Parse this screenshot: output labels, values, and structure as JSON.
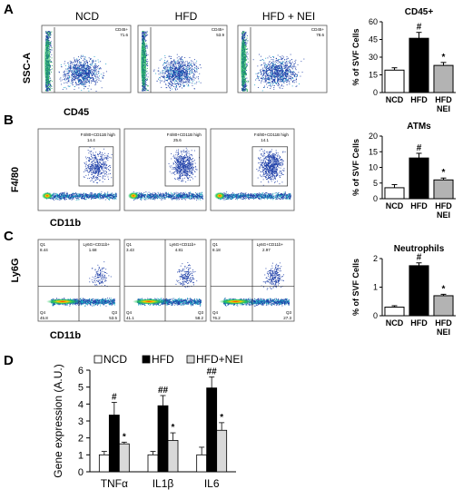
{
  "panels": {
    "A": {
      "letter": "A",
      "headers": [
        "NCD",
        "HFD",
        "HFD + NEI"
      ],
      "x_axis_label": "CD45",
      "y_axis_label": "SSC-A",
      "gate_values": [
        {
          "gate": "CD45+",
          "value": "71.6"
        },
        {
          "gate": "CD45+",
          "value": "53.9"
        },
        {
          "gate": "CD45+",
          "value": "78.6"
        }
      ]
    },
    "B": {
      "letter": "B",
      "x_axis_label": "CD11b",
      "y_axis_label": "F4/80",
      "gate_values": [
        {
          "gate": "F4/80+CD11B high",
          "value": "14.4"
        },
        {
          "gate": "F4/80+CD11B high",
          "value": "25.6"
        },
        {
          "gate": "F4/80+CD11B high",
          "value": "14.1"
        }
      ]
    },
    "C": {
      "letter": "C",
      "x_axis_label": "CD11b",
      "y_axis_label": "Ly6G",
      "quadrants": [
        {
          "q1": "Q1",
          "q1v": "8.44",
          "q2": "Ly6G+CD11b+",
          "q2v": "1.68",
          "q4": "Q4",
          "q4v": "45.8",
          "q3": "Q3",
          "q3v": "53.5"
        },
        {
          "q1": "Q1",
          "q1v": "3.43",
          "q2": "Ly6G+CD11b+",
          "q2v": "4.81",
          "q4": "Q4",
          "q4v": "41.1",
          "q3": "Q3",
          "q3v": "58.2"
        },
        {
          "q1": "Q1",
          "q1v": "8.18",
          "q2": "Ly6G+CD11b+",
          "q2v": "2.97",
          "q4": "Q4",
          "q4v": "76.2",
          "q3": "Q3",
          "q3v": "27.3"
        }
      ]
    },
    "D": {
      "letter": "D"
    }
  },
  "chart_data": [
    {
      "type": "bar",
      "title": "CD45+",
      "ylabel": "% of SVF Cells",
      "categories": [
        "NCD",
        "HFD",
        "HFD NEI"
      ],
      "values": [
        19,
        46,
        23
      ],
      "errors": [
        2,
        5,
        2.5
      ],
      "significance": [
        "",
        "#",
        "*"
      ],
      "ylim": [
        0,
        60
      ],
      "yticks": [
        0,
        15,
        30,
        45,
        60
      ],
      "colors": [
        "#ffffff",
        "#000000",
        "#b3b3b3"
      ]
    },
    {
      "type": "bar",
      "title": "ATMs",
      "ylabel": "% of SVF Cells",
      "categories": [
        "NCD",
        "HFD",
        "HFD NEI"
      ],
      "values": [
        3.5,
        13,
        6
      ],
      "errors": [
        1,
        1.5,
        0.6
      ],
      "significance": [
        "",
        "#",
        "*"
      ],
      "ylim": [
        0,
        20
      ],
      "yticks": [
        0,
        5,
        10,
        15,
        20
      ],
      "colors": [
        "#ffffff",
        "#000000",
        "#b3b3b3"
      ]
    },
    {
      "type": "bar",
      "title": "Neutrophils",
      "ylabel": "% of SVF Cells",
      "categories": [
        "NCD",
        "HFD",
        "HFD NEI"
      ],
      "values": [
        0.3,
        1.75,
        0.7
      ],
      "errors": [
        0.05,
        0.1,
        0.05
      ],
      "significance": [
        "",
        "#",
        "*"
      ],
      "ylim": [
        0,
        2
      ],
      "yticks": [
        0,
        1,
        2
      ],
      "colors": [
        "#ffffff",
        "#000000",
        "#b3b3b3"
      ]
    },
    {
      "type": "bar",
      "title": "",
      "ylabel": "Gene expression (A.U.)",
      "categories": [
        "TNFα",
        "IL1β",
        "IL6"
      ],
      "series": [
        {
          "name": "NCD",
          "values": [
            1,
            1,
            1
          ],
          "errors": [
            0.2,
            0.2,
            0.45
          ],
          "significance": [
            "",
            "",
            ""
          ],
          "color": "#ffffff"
        },
        {
          "name": "HFD",
          "values": [
            3.35,
            3.9,
            4.95
          ],
          "errors": [
            0.75,
            0.6,
            0.65
          ],
          "significance": [
            "#",
            "##",
            "##"
          ],
          "color": "#000000"
        },
        {
          "name": "HFD+NEI",
          "values": [
            1.65,
            1.85,
            2.45
          ],
          "errors": [
            0.1,
            0.45,
            0.45
          ],
          "significance": [
            "*",
            "*",
            "*"
          ],
          "color": "#d9d9d9"
        }
      ],
      "ylim": [
        0,
        6
      ],
      "yticks": [
        0,
        1,
        2,
        3,
        4,
        5,
        6
      ],
      "legend": "top"
    }
  ]
}
